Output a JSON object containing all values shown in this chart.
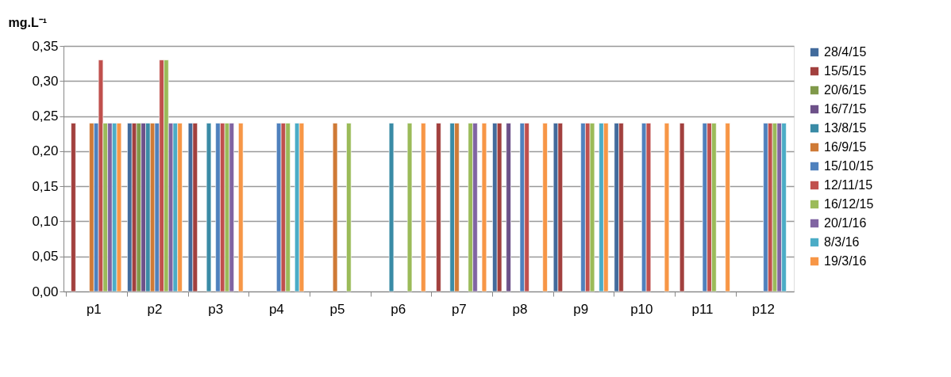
{
  "chart_data": {
    "type": "bar",
    "ylabel": "mg.L⁻¹",
    "categories": [
      "p1",
      "p2",
      "p3",
      "p4",
      "p5",
      "p6",
      "p7",
      "p8",
      "p9",
      "p10",
      "p11",
      "p12"
    ],
    "series": [
      {
        "name": "28/4/15",
        "color": "#426b9c",
        "values": [
          null,
          0.24,
          0.24,
          null,
          null,
          null,
          null,
          0.24,
          0.24,
          0.24,
          null,
          null
        ]
      },
      {
        "name": "15/5/15",
        "color": "#a2403e",
        "values": [
          0.24,
          0.24,
          0.24,
          null,
          null,
          null,
          0.24,
          0.24,
          0.24,
          0.24,
          0.24,
          null
        ]
      },
      {
        "name": "20/6/15",
        "color": "#80994a",
        "values": [
          null,
          0.24,
          null,
          null,
          null,
          null,
          null,
          null,
          null,
          null,
          null,
          null
        ]
      },
      {
        "name": "16/7/15",
        "color": "#6d5189",
        "values": [
          null,
          0.24,
          null,
          null,
          null,
          null,
          null,
          0.24,
          null,
          null,
          null,
          null
        ]
      },
      {
        "name": "13/8/15",
        "color": "#3a8ba6",
        "values": [
          null,
          0.24,
          0.24,
          null,
          null,
          0.24,
          0.24,
          null,
          null,
          null,
          null,
          null
        ]
      },
      {
        "name": "16/9/15",
        "color": "#cf7a36",
        "values": [
          0.24,
          0.24,
          null,
          null,
          0.24,
          null,
          0.24,
          null,
          null,
          null,
          null,
          null
        ]
      },
      {
        "name": "15/10/15",
        "color": "#4f81bd",
        "values": [
          0.24,
          0.24,
          0.24,
          0.24,
          null,
          null,
          null,
          0.24,
          0.24,
          0.24,
          0.24,
          0.24
        ]
      },
      {
        "name": "12/11/15",
        "color": "#c0504d",
        "values": [
          0.33,
          0.33,
          0.24,
          0.24,
          null,
          null,
          null,
          0.24,
          0.24,
          0.24,
          0.24,
          0.24
        ]
      },
      {
        "name": "16/12/15",
        "color": "#9bbb59",
        "values": [
          0.24,
          0.33,
          0.24,
          0.24,
          0.24,
          0.24,
          0.24,
          null,
          0.24,
          null,
          0.24,
          0.24
        ]
      },
      {
        "name": "20/1/16",
        "color": "#8064a2",
        "values": [
          0.24,
          0.24,
          0.24,
          null,
          null,
          null,
          0.24,
          null,
          null,
          null,
          null,
          0.24
        ]
      },
      {
        "name": "8/3/16",
        "color": "#4bacc6",
        "values": [
          0.24,
          0.24,
          null,
          0.24,
          null,
          null,
          null,
          null,
          0.24,
          null,
          null,
          0.24
        ]
      },
      {
        "name": "19/3/16",
        "color": "#f79646",
        "values": [
          0.24,
          0.24,
          0.24,
          0.24,
          null,
          0.24,
          0.24,
          0.24,
          0.24,
          0.24,
          0.24,
          null
        ]
      }
    ],
    "ylim": [
      0,
      0.35
    ],
    "yticks": [
      {
        "value": 0,
        "label": "0,00"
      },
      {
        "value": 0.05,
        "label": "0,05"
      },
      {
        "value": 0.1,
        "label": "0,10"
      },
      {
        "value": 0.15,
        "label": "0,15"
      },
      {
        "value": 0.2,
        "label": "0,20"
      },
      {
        "value": 0.25,
        "label": "0,25"
      },
      {
        "value": 0.3,
        "label": "0,30"
      },
      {
        "value": 0.35,
        "label": "0,35"
      }
    ],
    "grid": "y",
    "legend": "right"
  }
}
